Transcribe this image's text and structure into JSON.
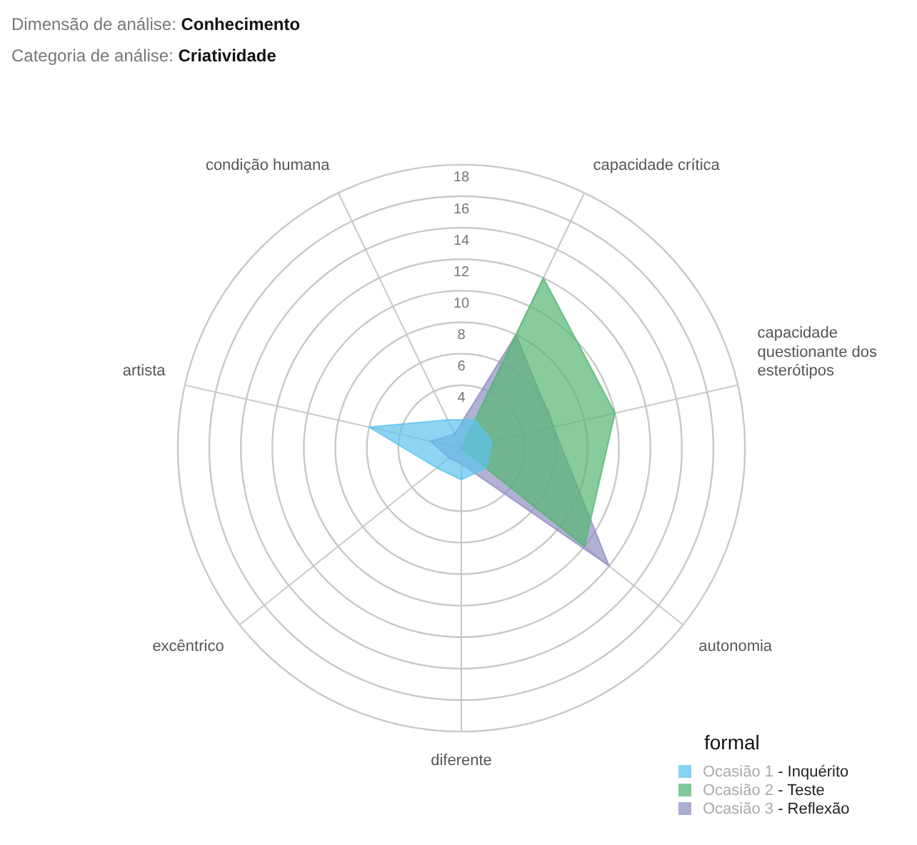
{
  "chart_data": {
    "type": "radar",
    "title": "Dimensão de análise: Conhecimento",
    "subtitle": "Categoria de análise: Criatividade",
    "legend_title": "formal",
    "categories": [
      "capacidade crítica",
      "capacidade questionante dos esterótipos",
      "autonomia",
      "diferente",
      "excêntrico",
      "artista",
      "condição humana"
    ],
    "series": [
      {
        "name": "Ocasião 1 - Inquérito",
        "color": "#5cc3ec",
        "values": [
          2,
          2,
          2,
          2,
          2,
          6,
          2
        ]
      },
      {
        "name": "Ocasião 2 - Teste",
        "color": "#55b672",
        "values": [
          12,
          10,
          10,
          0,
          0,
          0,
          0
        ]
      },
      {
        "name": "Ocasião 3 - Reflexão",
        "color": "#8f90c2",
        "values": [
          8,
          6,
          12,
          1,
          1,
          2,
          1
        ]
      }
    ],
    "ylim": [
      0,
      18
    ],
    "yticks": [
      4,
      6,
      8,
      10,
      12,
      14,
      16,
      18
    ],
    "legend": "bottom right",
    "grid": true,
    "marker": "none"
  }
}
